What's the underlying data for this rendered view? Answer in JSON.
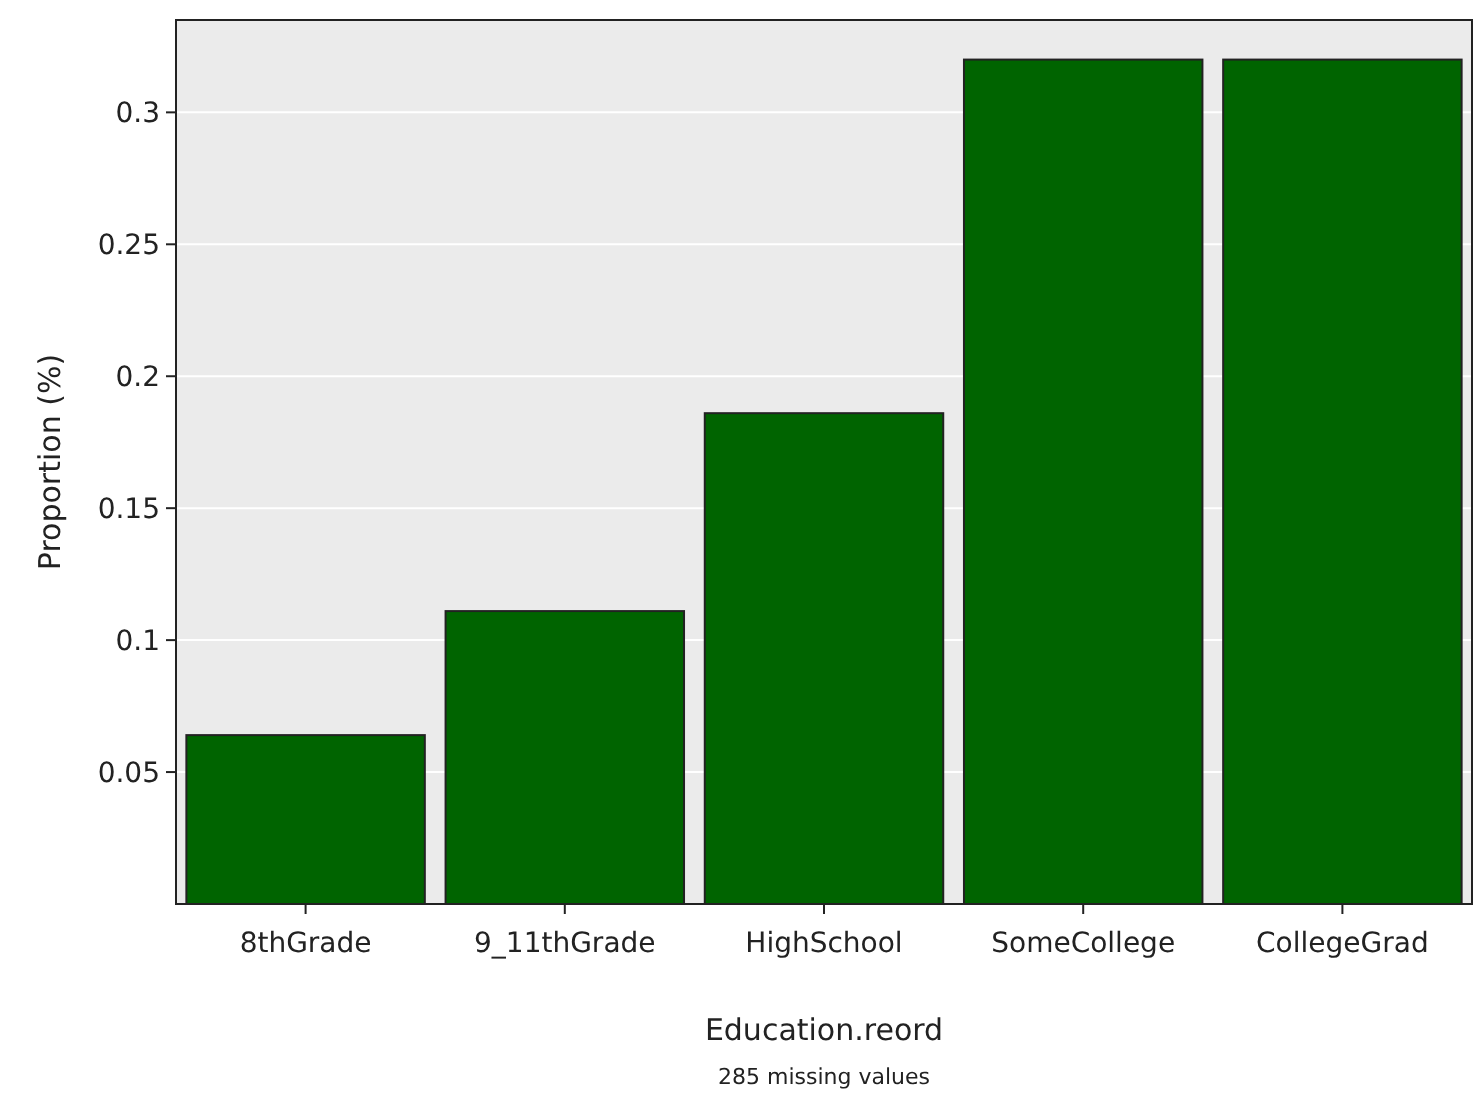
{
  "chart_data": {
    "type": "bar",
    "xlabel": "Education.reord",
    "ylabel": "Proportion (%)",
    "annotations": [
      "285 missing values"
    ],
    "categories": [
      "8thGrade",
      "9_11thGrade",
      "HighSchool",
      "SomeCollege",
      "CollegeGrad"
    ],
    "values": [
      0.064,
      0.111,
      0.186,
      0.32,
      0.32
    ],
    "color": "#006400",
    "ylim": [
      0,
      0.335
    ],
    "yticks": [
      0.05,
      0.1,
      0.15,
      0.2,
      0.25,
      0.3
    ],
    "grid": "y"
  }
}
